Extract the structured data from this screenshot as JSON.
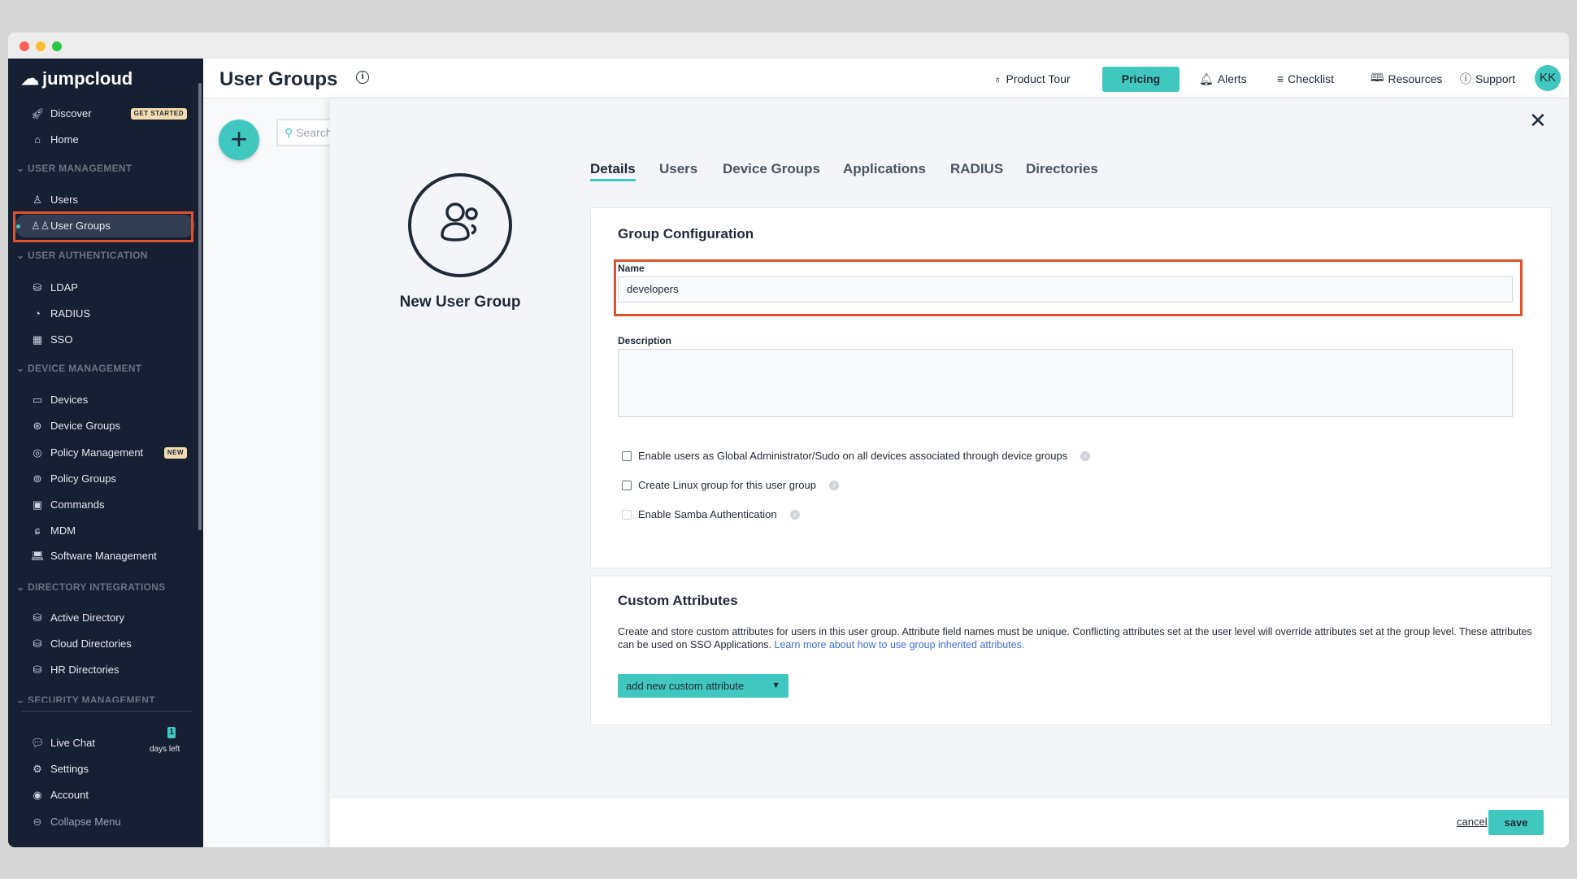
{
  "colors": {
    "accent": "#40c8c0",
    "sidebar_bg": "#171f33",
    "highlight": "#e0522e",
    "link": "#3b6fd4"
  },
  "sidebar": {
    "logo": "jumpcloud",
    "discover": "Discover",
    "discover_badge": "GET STARTED",
    "home": "Home",
    "user_management": "USER MANAGEMENT",
    "users": "Users",
    "user_groups": "User Groups",
    "user_authentication": "USER AUTHENTICATION",
    "ldap": "LDAP",
    "radius": "RADIUS",
    "sso": "SSO",
    "device_management": "DEVICE MANAGEMENT",
    "devices": "Devices",
    "device_groups": "Device Groups",
    "policy_management": "Policy Management",
    "policy_badge": "NEW",
    "policy_groups": "Policy Groups",
    "commands": "Commands",
    "mdm": "MDM",
    "software_management": "Software Management",
    "directory_integrations": "DIRECTORY INTEGRATIONS",
    "active_directory": "Active Directory",
    "cloud_directories": "Cloud Directories",
    "hr_directories": "HR Directories",
    "security_management": "SECURITY MANAGEMENT",
    "live_chat": "Live Chat",
    "days_count": "1",
    "days_left": "days left",
    "settings": "Settings",
    "account": "Account",
    "collapse": "Collapse Menu"
  },
  "header": {
    "title": "User Groups",
    "product_tour": "Product Tour",
    "pricing": "Pricing",
    "alerts": "Alerts",
    "checklist": "Checklist",
    "resources": "Resources",
    "support": "Support",
    "avatar": "KK"
  },
  "list": {
    "search_placeholder": "Search"
  },
  "drawer": {
    "title": "New User Group",
    "tabs": [
      "Details",
      "Users",
      "Device Groups",
      "Applications",
      "RADIUS",
      "Directories"
    ],
    "group_config": {
      "title": "Group Configuration",
      "name_label": "Name",
      "name_value": "developers",
      "description_label": "Description",
      "description_value": "",
      "options": [
        {
          "label": "Enable users as Global Administrator/Sudo on all devices associated through device groups",
          "checked": false
        },
        {
          "label": "Create Linux group for this user group",
          "checked": false
        },
        {
          "label": "Enable Samba Authentication",
          "checked": false,
          "disabled": true
        }
      ]
    },
    "custom_attributes": {
      "title": "Custom Attributes",
      "text": "Create and store custom attributes for users in this user group. Attribute field names must be unique. Conflicting attributes set at the user level will override attributes set at the group level. These attributes can be used on SSO Applications.",
      "link": "Learn more about how to use group inherited attributes.",
      "button": "add new custom attribute"
    },
    "cancel": "cancel",
    "save": "save"
  }
}
